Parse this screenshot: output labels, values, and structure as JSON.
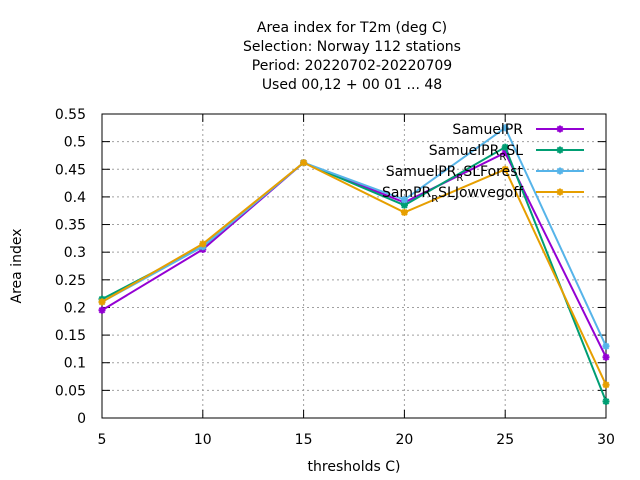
{
  "chart_data": {
    "type": "line",
    "title_lines": [
      "Area index  for T2m (deg C)",
      "Selection: Norway    112 stations",
      "Period: 20220702-20220709",
      "Used  00,12  + 00 01 ... 48"
    ],
    "xlabel": "thresholds C)",
    "ylabel": "Area index",
    "x": [
      5,
      10,
      15,
      20,
      25,
      30
    ],
    "xlim": [
      5,
      30
    ],
    "ylim": [
      0,
      0.55
    ],
    "xticks": [
      "5",
      "10",
      "15",
      "20",
      "25",
      "30"
    ],
    "yticks": [
      "0",
      "0.05",
      "0.1",
      "0.15",
      "0.2",
      "0.25",
      "0.3",
      "0.35",
      "0.4",
      "0.45",
      "0.5",
      "0.55"
    ],
    "grid": true,
    "legend_position": "top-right",
    "series": [
      {
        "name_main": "SamuelPR",
        "name_sub": "",
        "name_tail": "",
        "color": "#9400d3",
        "values": [
          0.195,
          0.305,
          0.462,
          0.39,
          0.48,
          0.11
        ]
      },
      {
        "name_main": "SamuelPR",
        "name_sub": "R",
        "name_tail": "SL",
        "color": "#009e73",
        "values": [
          0.215,
          0.31,
          0.462,
          0.385,
          0.49,
          0.03
        ]
      },
      {
        "name_main": "SamuelPR",
        "name_sub": "R",
        "name_tail": "SLForest",
        "color": "#56b4e9",
        "values": [
          0.21,
          0.31,
          0.462,
          0.395,
          0.525,
          0.13
        ]
      },
      {
        "name_main": "SamPR",
        "name_sub": "R",
        "name_tail": "SLJowvegoff",
        "color": "#e69f00",
        "values": [
          0.21,
          0.315,
          0.462,
          0.372,
          0.45,
          0.06
        ]
      }
    ]
  }
}
